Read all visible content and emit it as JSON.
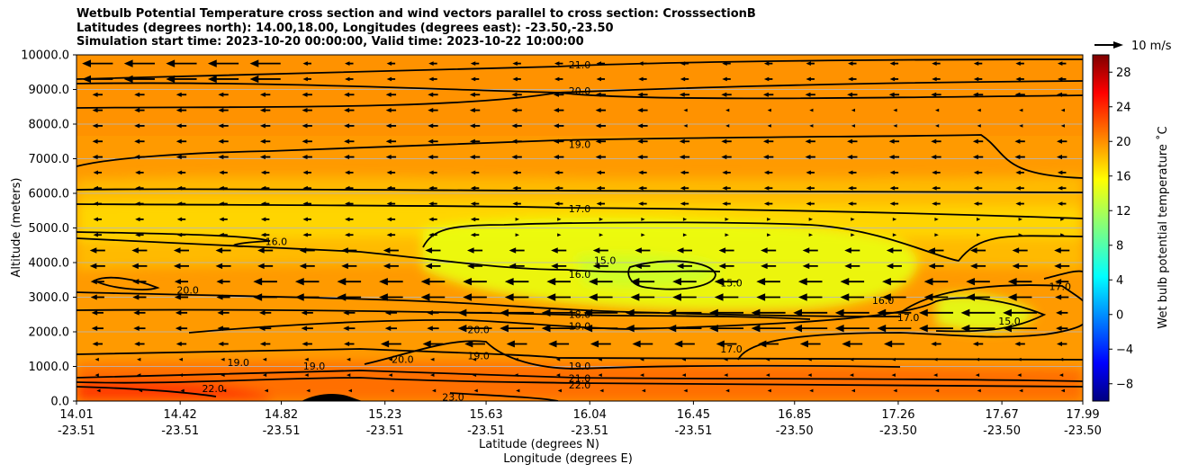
{
  "title": {
    "line1": "Wetbulb Potential Temperature cross section and wind vectors parallel to cross section: CrosssectionB",
    "line2": "Latitudes (degrees north): 14.00,18.00, Longitudes (degrees east): -23.50,-23.50",
    "line3": "Simulation start time: 2023-10-20 00:00:00, Valid time: 2023-10-22 10:00:00"
  },
  "colorbar": {
    "label": "Wet bulb potential temperature $^\\circ$C",
    "label_text": "Wet bulb potential temperature ˚C",
    "ticks": [
      "28",
      "24",
      "20",
      "16",
      "12",
      "8",
      "4",
      "0",
      "−4",
      "−8"
    ],
    "tick_values": [
      28,
      24,
      20,
      16,
      12,
      8,
      4,
      0,
      -4,
      -8
    ],
    "range": [
      -10,
      30
    ],
    "colormap": "jet"
  },
  "quiver_key": {
    "label": "10 m/s"
  },
  "chart_data": {
    "type": "heatmap",
    "title": "Wetbulb Potential Temperature cross section and wind vectors parallel to cross section: CrosssectionB",
    "ylabel": "Altitude (meters)",
    "xlabel_lat": "Latitude (degrees N)",
    "xlabel_lon": "Longitude (degrees E)",
    "ylim": [
      0,
      10000
    ],
    "y_ticks": [
      "0.0",
      "1000.0",
      "2000.0",
      "3000.0",
      "4000.0",
      "5000.0",
      "6000.0",
      "7000.0",
      "8000.0",
      "9000.0",
      "10000.0"
    ],
    "x_ticks_lat": [
      "14.01",
      "14.42",
      "14.82",
      "15.23",
      "15.63",
      "16.04",
      "16.45",
      "16.85",
      "17.26",
      "17.67",
      "17.99"
    ],
    "x_ticks_lon": [
      "-23.51",
      "-23.51",
      "-23.51",
      "-23.51",
      "-23.51",
      "-23.51",
      "-23.51",
      "-23.50",
      "-23.50",
      "-23.50",
      "-23.50"
    ],
    "grid": "horizontal",
    "contour_labels": [
      {
        "text": "21.0",
        "x": 16.0,
        "y": 9700
      },
      {
        "text": "20.0",
        "x": 16.0,
        "y": 8950
      },
      {
        "text": "19.0",
        "x": 16.0,
        "y": 7400
      },
      {
        "text": "17.0",
        "x": 16.0,
        "y": 5550
      },
      {
        "text": "16.0",
        "x": 14.8,
        "y": 4600
      },
      {
        "text": "15.0",
        "x": 16.1,
        "y": 4050
      },
      {
        "text": "16.0",
        "x": 16.0,
        "y": 3650
      },
      {
        "text": "15.0",
        "x": 16.6,
        "y": 3400
      },
      {
        "text": "20.0",
        "x": 14.45,
        "y": 3200
      },
      {
        "text": "18.0",
        "x": 16.0,
        "y": 2500
      },
      {
        "text": "19.0",
        "x": 16.0,
        "y": 2150
      },
      {
        "text": "20.0",
        "x": 15.6,
        "y": 2050
      },
      {
        "text": "17.0",
        "x": 17.3,
        "y": 2400
      },
      {
        "text": "16.0",
        "x": 17.2,
        "y": 2900
      },
      {
        "text": "15.0",
        "x": 17.7,
        "y": 2300
      },
      {
        "text": "17.0",
        "x": 17.9,
        "y": 3300
      },
      {
        "text": "17.0",
        "x": 16.6,
        "y": 1500
      },
      {
        "text": "19.0",
        "x": 15.6,
        "y": 1300
      },
      {
        "text": "19.0",
        "x": 16.0,
        "y": 1000
      },
      {
        "text": "19.0",
        "x": 14.65,
        "y": 1100
      },
      {
        "text": "19.0",
        "x": 14.95,
        "y": 1000
      },
      {
        "text": "20.0",
        "x": 15.3,
        "y": 1200
      },
      {
        "text": "22.0",
        "x": 14.55,
        "y": 350
      },
      {
        "text": "23.0",
        "x": 15.5,
        "y": 100
      },
      {
        "text": "21.0",
        "x": 16.0,
        "y": 650
      },
      {
        "text": "22.0",
        "x": 16.0,
        "y": 450
      }
    ],
    "wind": {
      "direction": "southward (leftward) dominant",
      "strong_jets": [
        {
          "y": 9500,
          "x_range": [
            14.01,
            14.82
          ]
        },
        {
          "y": 2500,
          "x_range": [
            15.63,
            17.67
          ]
        },
        {
          "y": 2000,
          "x_range": [
            16.04,
            17.67
          ]
        },
        {
          "y": 3000,
          "x_range": [
            14.82,
            17.67
          ]
        }
      ]
    }
  }
}
